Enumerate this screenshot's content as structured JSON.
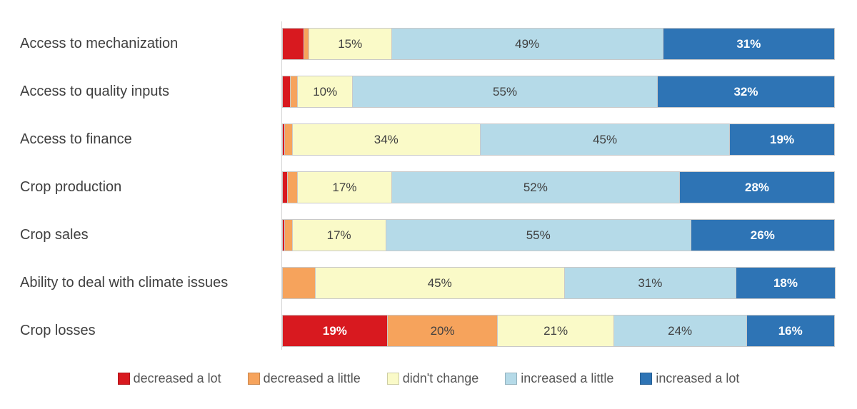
{
  "chart_data": {
    "type": "bar",
    "orientation": "horizontal",
    "stacked": true,
    "title": "",
    "xlabel": "",
    "ylabel": "",
    "xlim": [
      0,
      100
    ],
    "grid": false,
    "legend_position": "bottom",
    "data_label_format": "percent",
    "data_label_min_value": 10,
    "categories": [
      "Access to mechanization",
      "Access to quality inputs",
      "Access to finance",
      "Crop production",
      "Crop sales",
      "Ability to deal with climate issues",
      "Crop losses"
    ],
    "series": [
      {
        "name": "decreased a lot",
        "color": "#d8191f",
        "label_style": "light",
        "values": [
          4,
          1.5,
          0.5,
          1,
          0.5,
          0,
          19
        ]
      },
      {
        "name": "decreased a little",
        "color": "#f6a35c",
        "label_style": "dark",
        "values": [
          1,
          1.5,
          1.5,
          2,
          1.5,
          6,
          20
        ]
      },
      {
        "name": "didn't change",
        "color": "#fafac8",
        "label_style": "dark",
        "values": [
          15,
          10,
          34,
          17,
          17,
          45,
          21
        ]
      },
      {
        "name": "increased a little",
        "color": "#b5dae8",
        "label_style": "dark",
        "values": [
          49,
          55,
          45,
          52,
          55,
          31,
          24
        ]
      },
      {
        "name": "increased a lot",
        "color": "#2e74b5",
        "label_style": "light",
        "values": [
          31,
          32,
          19,
          28,
          26,
          18,
          16
        ]
      }
    ],
    "data_labels": {
      "Access to mechanization": [
        "",
        "",
        "15%",
        "49%",
        "31%"
      ],
      "Access to quality inputs": [
        "",
        "",
        "10%",
        "55%",
        "32%"
      ],
      "Access to finance": [
        "",
        "",
        "34%",
        "45%",
        "19%"
      ],
      "Crop production": [
        "",
        "",
        "17%",
        "52%",
        "28%"
      ],
      "Crop sales": [
        "",
        "",
        "17%",
        "55%",
        "26%"
      ],
      "Ability to deal with climate issues": [
        "",
        "",
        "45%",
        "31%",
        "18%"
      ],
      "Crop losses": [
        "19%",
        "20%",
        "21%",
        "24%",
        "16%"
      ]
    }
  },
  "colors": {
    "background": "#ffffff",
    "axis_line": "#d6d6d6",
    "segment_border": "#c9c9c9",
    "category_text": "#3f3f3f",
    "value_text_dark": "#404040",
    "value_text_light": "#ffffff",
    "legend_text": "#555555"
  }
}
